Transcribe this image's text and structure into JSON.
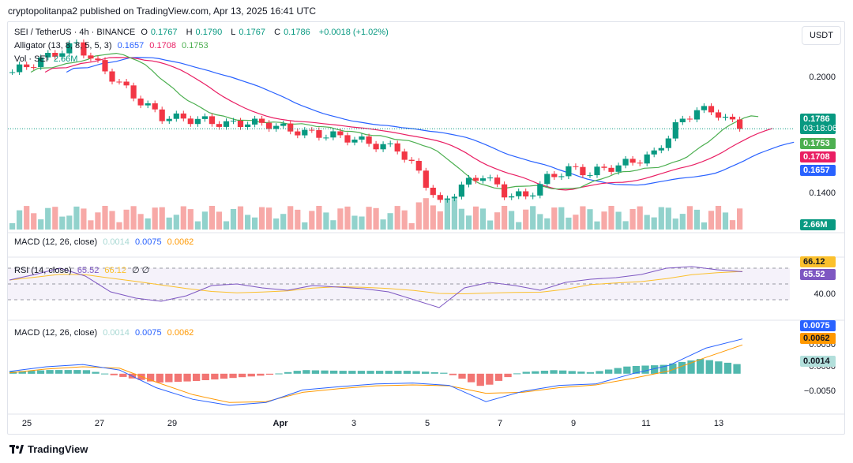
{
  "header": {
    "published": "cryptopolitanpa2 published on TradingView.com, Apr 13, 2025 16:41 UTC"
  },
  "legend": {
    "symbol": "SEI / TetherUS · 4h · BINANCE",
    "open_label": "O",
    "open": "0.1767",
    "high_label": "H",
    "high": "0.1790",
    "low_label": "L",
    "low": "0.1767",
    "close_label": "C",
    "close": "0.1786",
    "change": "+0.0018 (+1.02%)",
    "alligator_label": "Alligator (13, 8, 8, 5, 5, 3)",
    "alligator_jaw": "0.1657",
    "alligator_teeth": "0.1708",
    "alligator_lips": "0.1753",
    "vol_label": "Vol · SEI",
    "vol_value": "2.66M"
  },
  "macd_top_label": "MACD (12, 26, close)",
  "macd_top_vals": [
    "0.0014",
    "0.0075",
    "0.0062"
  ],
  "rsi_legend": {
    "label": "RSI (14, close)",
    "rsi": "65.52",
    "ma": "66.12",
    "ext": "∅ ∅"
  },
  "macd_legend": {
    "label": "MACD (12, 26, close)",
    "hist": "0.0014",
    "macd": "0.0075",
    "signal": "0.0062"
  },
  "currency_button": "USDT",
  "price_axis": {
    "labels": [
      "0.2000",
      "0.1400"
    ]
  },
  "price_tags": {
    "close": "0.1786",
    "countdown": "03:18:06",
    "lips": "0.1753",
    "teeth": "0.1708",
    "jaw": "0.1657",
    "volume": "2.66M"
  },
  "rsi_axis": {
    "labels": [
      "40.00"
    ],
    "tag_ma": "66.12",
    "tag_rsi": "65.52"
  },
  "macd_axis": {
    "labels": [
      "0.0050",
      "0.0000",
      "−0.0050"
    ],
    "tag_macd": "0.0075",
    "tag_signal": "0.0062",
    "tag_hist": "0.0014"
  },
  "time_axis": {
    "labels": [
      "25",
      "27",
      "29",
      "Apr",
      "3",
      "5",
      "7",
      "9",
      "11",
      "13"
    ]
  },
  "footer": {
    "brand": "TradingView"
  },
  "colors": {
    "up": "#089981",
    "down": "#f23645",
    "jaw": "#2962ff",
    "teeth": "#e91e63",
    "lips": "#4caf50",
    "vol_up": "#92d2cc",
    "vol_down": "#f7a9a7",
    "macd": "#2962ff",
    "signal": "#ff9800",
    "rsi": "#7e57c2",
    "rsi_ma": "#fbc02d"
  },
  "chart_data": [
    {
      "type": "candlestick",
      "title": "SEI / TetherUS · 4h · BINANCE",
      "x": [
        "Mar 25",
        "Mar 27",
        "Mar 29",
        "Apr 1",
        "Apr 3",
        "Apr 5",
        "Apr 7",
        "Apr 9",
        "Apr 11",
        "Apr 13"
      ],
      "ylim": [
        0.125,
        0.235
      ],
      "close_series": [
        0.209,
        0.214,
        0.219,
        0.224,
        0.213,
        0.203,
        0.193,
        0.185,
        0.184,
        0.183,
        0.181,
        0.182,
        0.181,
        0.178,
        0.176,
        0.175,
        0.173,
        0.17,
        0.168,
        0.155,
        0.138,
        0.148,
        0.154,
        0.144,
        0.142,
        0.152,
        0.157,
        0.155,
        0.158,
        0.161,
        0.165,
        0.18,
        0.189,
        0.187,
        0.1786
      ],
      "series": [
        {
          "name": "Alligator Jaw",
          "last": 0.1657
        },
        {
          "name": "Alligator Teeth",
          "last": 0.1708
        },
        {
          "name": "Alligator Lips",
          "last": 0.1753
        }
      ],
      "volume_last": "2.66M"
    },
    {
      "type": "line",
      "title": "RSI (14, close)",
      "values": [
        55,
        62,
        70,
        60,
        40,
        32,
        28,
        35,
        48,
        50,
        45,
        42,
        48,
        46,
        44,
        40,
        30,
        20,
        45,
        52,
        48,
        42,
        52,
        56,
        58,
        62,
        70,
        72,
        68,
        65.52
      ],
      "ma_last": 66.12,
      "levels": [
        70,
        50,
        30
      ]
    },
    {
      "type": "line",
      "title": "MACD (12, 26, close)",
      "macd": [
        0.0005,
        0.0015,
        0.002,
        0.0008,
        -0.003,
        -0.0055,
        -0.0068,
        -0.0062,
        -0.0035,
        -0.0028,
        -0.0022,
        -0.002,
        -0.0025,
        -0.006,
        -0.0038,
        -0.0025,
        -0.0022,
        0.0,
        0.0018,
        0.0055,
        0.0075
      ],
      "signal": [
        0.0002,
        0.001,
        0.0015,
        0.0012,
        -0.0018,
        -0.0045,
        -0.0062,
        -0.006,
        -0.004,
        -0.0032,
        -0.0026,
        -0.0024,
        -0.0026,
        -0.0042,
        -0.004,
        -0.003,
        -0.0024,
        -0.001,
        0.0006,
        0.0035,
        0.0062
      ],
      "hist_last": 0.0014
    }
  ]
}
